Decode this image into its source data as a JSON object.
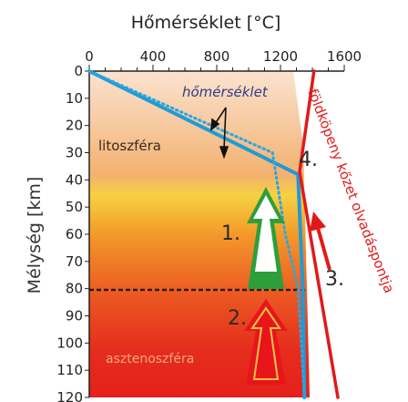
{
  "title": "Hőmérséklet  [°C]",
  "y_axis_label": "Mélység  [km]",
  "x_ticks": [
    "0",
    "400",
    "800",
    "1200",
    "1600"
  ],
  "y_ticks": [
    "0",
    "10",
    "20",
    "30",
    "40",
    "50",
    "60",
    "70",
    "80",
    "90",
    "100",
    "110",
    "120"
  ],
  "labels": {
    "litoszfera": "litoszféra",
    "asztenoszfera": "asztenoszféra",
    "homerseklet": "hőmérséklet",
    "olvadaspont": "földköpeny kőzet olvadáspontja",
    "n1": "1.",
    "n2": "2.",
    "n3": "3.",
    "n4": "4."
  },
  "colors": {
    "geotherm": "#1f9bd6",
    "solidus": "#e01a1a",
    "arrow_green": "#2e9e3a",
    "arrow_red": "#e8161b"
  },
  "chart_data": {
    "type": "line",
    "x_range": [
      0,
      1600
    ],
    "y_range": [
      0,
      120
    ],
    "x_unit": "°C",
    "y_unit": "km",
    "series": [
      {
        "name": "hőmérséklet",
        "style": "solid",
        "x": [
          0,
          1310,
          1340,
          1350
        ],
        "y": [
          0,
          38,
          80,
          120
        ]
      },
      {
        "style": "dotted",
        "x": [
          0,
          1150,
          1230,
          1310,
          1350
        ],
        "y": [
          0,
          30,
          60,
          80,
          120
        ]
      },
      {
        "name": "földköpeny kőzet olvadáspontja",
        "style": "solid",
        "x": [
          1410,
          1320,
          1560
        ],
        "y": [
          0,
          37,
          120
        ]
      }
    ]
  }
}
